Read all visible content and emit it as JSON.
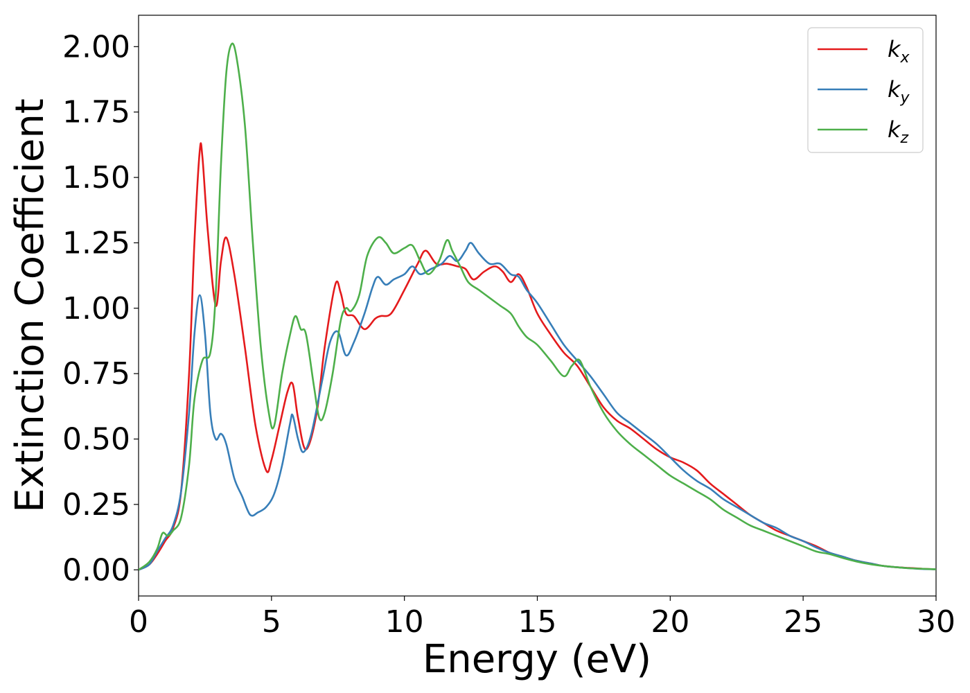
{
  "chart_data": {
    "type": "line",
    "xlabel": "Energy (eV)",
    "ylabel": "Extinction Coefficient",
    "xlim": [
      0,
      30
    ],
    "ylim": [
      -0.1,
      2.12
    ],
    "xticks": [
      0,
      5,
      10,
      15,
      20,
      25,
      30
    ],
    "xtick_labels": [
      "0",
      "5",
      "10",
      "15",
      "20",
      "25",
      "30"
    ],
    "yticks": [
      0.0,
      0.25,
      0.5,
      0.75,
      1.0,
      1.25,
      1.5,
      1.75,
      2.0
    ],
    "ytick_labels": [
      "0.00",
      "0.25",
      "0.50",
      "0.75",
      "1.00",
      "1.25",
      "1.50",
      "1.75",
      "2.00"
    ],
    "grid": false,
    "legend_position": "top-right",
    "series": [
      {
        "name": "k",
        "subscript": "x",
        "color": "#e41a1c",
        "x": [
          0,
          0.4,
          0.7,
          1.0,
          1.3,
          1.6,
          1.9,
          2.1,
          2.3,
          2.4,
          2.6,
          2.9,
          3.1,
          3.3,
          3.6,
          4.0,
          4.4,
          4.8,
          5.0,
          5.3,
          5.6,
          5.8,
          6.0,
          6.3,
          6.7,
          7.0,
          7.4,
          7.6,
          7.8,
          8.1,
          8.5,
          8.9,
          9.1,
          9.5,
          10.0,
          10.5,
          10.8,
          11.2,
          11.6,
          12.0,
          12.3,
          12.6,
          13.0,
          13.4,
          13.7,
          14.0,
          14.3,
          14.6,
          15.0,
          15.5,
          16.0,
          16.5,
          17.0,
          17.5,
          18.0,
          18.5,
          19.0,
          19.5,
          20.0,
          20.5,
          21.0,
          21.5,
          22.0,
          22.5,
          23.0,
          23.5,
          24.0,
          24.5,
          25.0,
          25.5,
          26.0,
          26.5,
          27.0,
          27.5,
          28.0,
          28.5,
          29.0,
          29.5,
          30
        ],
        "y": [
          0.0,
          0.02,
          0.06,
          0.11,
          0.16,
          0.3,
          0.75,
          1.25,
          1.6,
          1.58,
          1.3,
          1.01,
          1.18,
          1.27,
          1.13,
          0.85,
          0.55,
          0.38,
          0.42,
          0.55,
          0.68,
          0.71,
          0.58,
          0.46,
          0.6,
          0.85,
          1.09,
          1.06,
          0.98,
          0.97,
          0.92,
          0.96,
          0.97,
          0.98,
          1.07,
          1.17,
          1.22,
          1.17,
          1.17,
          1.16,
          1.15,
          1.11,
          1.14,
          1.16,
          1.14,
          1.1,
          1.13,
          1.08,
          0.98,
          0.9,
          0.83,
          0.78,
          0.7,
          0.62,
          0.57,
          0.54,
          0.5,
          0.46,
          0.43,
          0.41,
          0.38,
          0.33,
          0.29,
          0.25,
          0.21,
          0.18,
          0.15,
          0.13,
          0.11,
          0.09,
          0.065,
          0.05,
          0.035,
          0.025,
          0.015,
          0.01,
          0.007,
          0.004,
          0.002
        ]
      },
      {
        "name": "k",
        "subscript": "y",
        "color": "#377eb8",
        "x": [
          0,
          0.4,
          0.7,
          1.0,
          1.3,
          1.6,
          1.9,
          2.1,
          2.3,
          2.5,
          2.7,
          2.9,
          3.1,
          3.3,
          3.6,
          3.9,
          4.2,
          4.5,
          4.8,
          5.1,
          5.4,
          5.7,
          5.8,
          6.0,
          6.2,
          6.5,
          6.9,
          7.2,
          7.5,
          7.8,
          8.1,
          8.5,
          8.8,
          9.0,
          9.3,
          9.6,
          10.0,
          10.3,
          10.6,
          11.0,
          11.4,
          11.7,
          12.0,
          12.3,
          12.5,
          12.8,
          13.2,
          13.6,
          14.0,
          14.3,
          14.6,
          15.0,
          15.5,
          16.0,
          16.5,
          17.0,
          17.5,
          18.0,
          18.5,
          19.0,
          19.5,
          20.0,
          20.5,
          21.0,
          21.5,
          22.0,
          22.5,
          23.0,
          23.5,
          24.0,
          24.5,
          25.0,
          25.5,
          26.0,
          26.5,
          27.0,
          27.5,
          28.0,
          28.5,
          29.0,
          29.5,
          30
        ],
        "y": [
          0.0,
          0.02,
          0.07,
          0.12,
          0.17,
          0.3,
          0.6,
          0.9,
          1.05,
          0.9,
          0.6,
          0.5,
          0.52,
          0.48,
          0.35,
          0.28,
          0.21,
          0.22,
          0.24,
          0.29,
          0.4,
          0.56,
          0.59,
          0.5,
          0.45,
          0.52,
          0.72,
          0.87,
          0.91,
          0.82,
          0.87,
          0.98,
          1.08,
          1.12,
          1.09,
          1.11,
          1.13,
          1.16,
          1.13,
          1.15,
          1.17,
          1.2,
          1.18,
          1.22,
          1.25,
          1.21,
          1.17,
          1.17,
          1.13,
          1.12,
          1.07,
          1.02,
          0.94,
          0.86,
          0.8,
          0.74,
          0.67,
          0.6,
          0.56,
          0.52,
          0.48,
          0.43,
          0.38,
          0.34,
          0.31,
          0.27,
          0.24,
          0.21,
          0.18,
          0.16,
          0.13,
          0.11,
          0.085,
          0.065,
          0.05,
          0.035,
          0.025,
          0.015,
          0.01,
          0.006,
          0.003,
          0.002
        ]
      },
      {
        "name": "k",
        "subscript": "z",
        "color": "#4daf4a",
        "x": [
          0,
          0.4,
          0.7,
          0.9,
          1.1,
          1.3,
          1.6,
          1.9,
          2.1,
          2.4,
          2.7,
          2.9,
          3.1,
          3.3,
          3.5,
          3.7,
          4.0,
          4.3,
          4.6,
          4.9,
          5.1,
          5.4,
          5.7,
          5.9,
          6.1,
          6.3,
          6.6,
          6.8,
          7.0,
          7.3,
          7.6,
          7.8,
          8.0,
          8.3,
          8.6,
          9.0,
          9.3,
          9.6,
          10.0,
          10.3,
          10.6,
          10.9,
          11.3,
          11.6,
          11.8,
          12.1,
          12.4,
          12.8,
          13.2,
          13.6,
          14.0,
          14.3,
          14.6,
          15.0,
          15.5,
          16.0,
          16.3,
          16.6,
          17.0,
          17.5,
          18.0,
          18.5,
          19.0,
          19.5,
          20.0,
          20.5,
          21.0,
          21.5,
          22.0,
          22.5,
          23.0,
          23.5,
          24.0,
          24.5,
          25.0,
          25.5,
          26.0,
          26.5,
          27.0,
          27.5,
          28.0,
          28.5,
          29.0,
          29.5,
          30
        ],
        "y": [
          0.0,
          0.03,
          0.08,
          0.14,
          0.13,
          0.15,
          0.2,
          0.4,
          0.65,
          0.8,
          0.83,
          1.05,
          1.55,
          1.9,
          2.01,
          1.95,
          1.7,
          1.25,
          0.85,
          0.6,
          0.55,
          0.75,
          0.9,
          0.97,
          0.92,
          0.9,
          0.7,
          0.58,
          0.6,
          0.75,
          0.95,
          1.0,
          0.99,
          1.05,
          1.2,
          1.27,
          1.25,
          1.21,
          1.23,
          1.24,
          1.18,
          1.13,
          1.18,
          1.26,
          1.22,
          1.16,
          1.1,
          1.07,
          1.04,
          1.01,
          0.98,
          0.93,
          0.89,
          0.86,
          0.8,
          0.74,
          0.78,
          0.8,
          0.7,
          0.6,
          0.53,
          0.48,
          0.44,
          0.4,
          0.36,
          0.33,
          0.3,
          0.27,
          0.23,
          0.2,
          0.17,
          0.15,
          0.13,
          0.11,
          0.09,
          0.07,
          0.06,
          0.045,
          0.032,
          0.022,
          0.015,
          0.01,
          0.006,
          0.004,
          0.002
        ]
      }
    ]
  }
}
